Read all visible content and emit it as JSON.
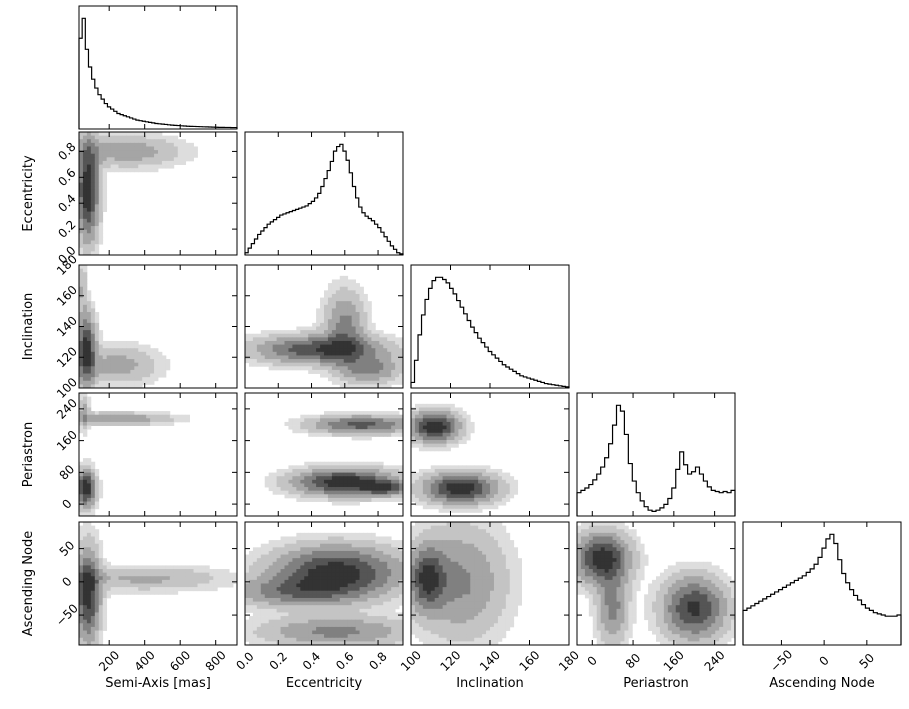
{
  "chart_data": {
    "type": "corner",
    "parameters": [
      "Semi-Axis [mas]",
      "Eccentricity",
      "Inclination",
      "Periastron",
      "Ascending Node"
    ],
    "row_labels": [
      "",
      "Eccentricity",
      "Inclination",
      "Periastron",
      "Ascending Node"
    ],
    "ranges": [
      [
        30,
        920
      ],
      [
        0.0,
        0.95
      ],
      [
        100,
        180
      ],
      [
        -30,
        280
      ],
      [
        -95,
        90
      ]
    ],
    "ticks": [
      {
        "values": [
          200,
          400,
          600,
          800
        ],
        "labels": [
          "200",
          "400",
          "600",
          "800"
        ]
      },
      {
        "values": [
          0.0,
          0.2,
          0.4,
          0.6,
          0.8
        ],
        "labels": [
          "0.0",
          "0.2",
          "0.4",
          "0.6",
          "0.8"
        ]
      },
      {
        "values": [
          100,
          120,
          140,
          160,
          180
        ],
        "labels": [
          "100",
          "120",
          "140",
          "160",
          "180"
        ]
      },
      {
        "values": [
          0,
          80,
          160,
          240
        ],
        "labels": [
          "0",
          "80",
          "160",
          "240"
        ]
      },
      {
        "values": [
          -50,
          0,
          50
        ],
        "labels": [
          "−50",
          "0",
          "50"
        ]
      }
    ],
    "histograms": [
      {
        "param": "Semi-Axis [mas]",
        "bins": [
          30,
          920
        ],
        "counts": [
          0.82,
          1.0,
          0.72,
          0.56,
          0.45,
          0.37,
          0.31,
          0.27,
          0.23,
          0.2,
          0.18,
          0.16,
          0.14,
          0.13,
          0.12,
          0.11,
          0.1,
          0.09,
          0.08,
          0.075,
          0.07,
          0.065,
          0.06,
          0.055,
          0.05,
          0.047,
          0.044,
          0.041,
          0.038,
          0.035,
          0.033,
          0.031,
          0.029,
          0.027,
          0.025,
          0.024,
          0.023,
          0.022,
          0.021,
          0.02,
          0.019,
          0.018,
          0.017,
          0.016,
          0.015,
          0.015,
          0.014,
          0.014,
          0.013,
          0.013
        ]
      },
      {
        "param": "Eccentricity",
        "bins": [
          0.0,
          0.95
        ],
        "counts": [
          0.02,
          0.06,
          0.1,
          0.14,
          0.18,
          0.21,
          0.24,
          0.27,
          0.29,
          0.31,
          0.33,
          0.35,
          0.36,
          0.37,
          0.38,
          0.39,
          0.4,
          0.41,
          0.42,
          0.43,
          0.45,
          0.47,
          0.5,
          0.54,
          0.6,
          0.67,
          0.74,
          0.82,
          0.91,
          0.95,
          0.97,
          0.91,
          0.83,
          0.72,
          0.6,
          0.5,
          0.42,
          0.37,
          0.34,
          0.32,
          0.3,
          0.27,
          0.24,
          0.2,
          0.16,
          0.12,
          0.08,
          0.05,
          0.02,
          0.01
        ]
      },
      {
        "param": "Inclination",
        "bins": [
          100,
          180
        ],
        "counts": [
          0.05,
          0.25,
          0.48,
          0.66,
          0.8,
          0.9,
          0.97,
          1.0,
          1.0,
          0.98,
          0.95,
          0.9,
          0.85,
          0.79,
          0.73,
          0.67,
          0.61,
          0.55,
          0.5,
          0.45,
          0.41,
          0.37,
          0.33,
          0.3,
          0.27,
          0.24,
          0.21,
          0.19,
          0.17,
          0.15,
          0.13,
          0.11,
          0.1,
          0.09,
          0.08,
          0.07,
          0.06,
          0.05,
          0.04,
          0.035,
          0.03,
          0.025,
          0.02,
          0.015,
          0.01
        ]
      },
      {
        "param": "Periastron",
        "bins": [
          -30,
          280
        ],
        "counts": [
          0.2,
          0.22,
          0.24,
          0.27,
          0.31,
          0.36,
          0.42,
          0.5,
          0.62,
          0.78,
          0.95,
          0.9,
          0.7,
          0.45,
          0.3,
          0.2,
          0.13,
          0.08,
          0.05,
          0.04,
          0.05,
          0.07,
          0.1,
          0.15,
          0.24,
          0.4,
          0.55,
          0.44,
          0.36,
          0.38,
          0.42,
          0.36,
          0.3,
          0.25,
          0.22,
          0.21,
          0.2,
          0.21,
          0.2,
          0.22
        ]
      },
      {
        "param": "Ascending Node",
        "bins": [
          -95,
          90
        ],
        "counts": [
          0.3,
          0.32,
          0.34,
          0.36,
          0.38,
          0.4,
          0.42,
          0.44,
          0.46,
          0.48,
          0.5,
          0.52,
          0.54,
          0.56,
          0.58,
          0.6,
          0.63,
          0.66,
          0.7,
          0.76,
          0.84,
          0.92,
          0.96,
          0.88,
          0.74,
          0.62,
          0.54,
          0.48,
          0.43,
          0.39,
          0.35,
          0.32,
          0.3,
          0.28,
          0.27,
          0.26,
          0.25,
          0.25,
          0.25,
          0.26
        ]
      }
    ],
    "density_2d": [
      {
        "x": "Semi-Axis [mas]",
        "y": "Eccentricity",
        "blobs": [
          {
            "cx": 80,
            "cy": 0.5,
            "sx": 40,
            "sy": 0.25,
            "w": 1.0
          },
          {
            "cx": 300,
            "cy": 0.8,
            "sx": 200,
            "sy": 0.08,
            "w": 0.35
          }
        ]
      },
      {
        "x": "Semi-Axis [mas]",
        "y": "Inclination",
        "blobs": [
          {
            "cx": 70,
            "cy": 125,
            "sx": 35,
            "sy": 15,
            "w": 1.0
          },
          {
            "cx": 250,
            "cy": 115,
            "sx": 150,
            "sy": 8,
            "w": 0.35
          },
          {
            "cx": 50,
            "cy": 165,
            "sx": 15,
            "sy": 10,
            "w": 0.3
          }
        ]
      },
      {
        "x": "Semi-Axis [mas]",
        "y": "Periastron",
        "blobs": [
          {
            "cx": 70,
            "cy": 40,
            "sx": 35,
            "sy": 30,
            "w": 1.0
          },
          {
            "cx": 250,
            "cy": 215,
            "sx": 200,
            "sy": 10,
            "w": 0.4
          },
          {
            "cx": 60,
            "cy": 230,
            "sx": 20,
            "sy": 30,
            "w": 0.3
          }
        ]
      },
      {
        "x": "Semi-Axis [mas]",
        "y": "Ascending Node",
        "blobs": [
          {
            "cx": 80,
            "cy": -20,
            "sx": 45,
            "sy": 45,
            "w": 1.0
          },
          {
            "cx": 400,
            "cy": 5,
            "sx": 300,
            "sy": 12,
            "w": 0.3
          }
        ]
      },
      {
        "x": "Eccentricity",
        "y": "Inclination",
        "blobs": [
          {
            "cx": 0.45,
            "cy": 125,
            "sx": 0.25,
            "sy": 6,
            "w": 1.0
          },
          {
            "cx": 0.6,
            "cy": 140,
            "sx": 0.08,
            "sy": 15,
            "w": 0.6
          },
          {
            "cx": 0.75,
            "cy": 112,
            "sx": 0.12,
            "sy": 6,
            "w": 0.6
          }
        ]
      },
      {
        "x": "Eccentricity",
        "y": "Periastron",
        "blobs": [
          {
            "cx": 0.6,
            "cy": 55,
            "sx": 0.2,
            "sy": 22,
            "w": 1.0
          },
          {
            "cx": 0.85,
            "cy": 40,
            "sx": 0.1,
            "sy": 12,
            "w": 0.6
          },
          {
            "cx": 0.7,
            "cy": 200,
            "sx": 0.2,
            "sy": 15,
            "w": 0.7
          }
        ]
      },
      {
        "x": "Eccentricity",
        "y": "Ascending Node",
        "blobs": [
          {
            "cx": 0.55,
            "cy": 15,
            "sx": 0.25,
            "sy": 25,
            "w": 1.0
          },
          {
            "cx": 0.3,
            "cy": -15,
            "sx": 0.25,
            "sy": 15,
            "w": 0.5
          },
          {
            "cx": 0.55,
            "cy": -75,
            "sx": 0.3,
            "sy": 15,
            "w": 0.5
          }
        ]
      },
      {
        "x": "Inclination",
        "y": "Periastron",
        "blobs": [
          {
            "cx": 112,
            "cy": 195,
            "sx": 8,
            "sy": 25,
            "w": 1.0
          },
          {
            "cx": 125,
            "cy": 40,
            "sx": 12,
            "sy": 25,
            "w": 1.0
          }
        ]
      },
      {
        "x": "Inclination",
        "y": "Ascending Node",
        "blobs": [
          {
            "cx": 108,
            "cy": 5,
            "sx": 6,
            "sy": 30,
            "w": 1.0
          },
          {
            "cx": 125,
            "cy": 0,
            "sx": 15,
            "sy": 55,
            "w": 0.6
          }
        ]
      },
      {
        "x": "Periastron",
        "y": "Ascending Node",
        "blobs": [
          {
            "cx": 20,
            "cy": 35,
            "sx": 35,
            "sy": 25,
            "w": 1.0
          },
          {
            "cx": 200,
            "cy": -40,
            "sx": 40,
            "sy": 30,
            "w": 0.9
          },
          {
            "cx": 40,
            "cy": -40,
            "sx": 20,
            "sy": 35,
            "w": 0.5
          }
        ]
      }
    ]
  }
}
